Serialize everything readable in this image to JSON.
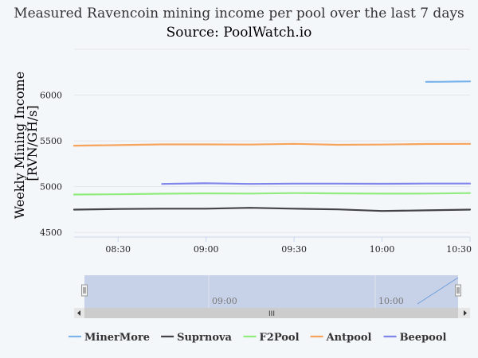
{
  "chart_data": {
    "type": "line",
    "title": "Measured Ravencoin mining income per pool over the last 7 days",
    "subtitle": "Source: PoolWatch.io",
    "ylabel": "Weekly Mining Income [RVN/GH/s]",
    "y_ticks": [
      "4500",
      "5000",
      "5500",
      "6000"
    ],
    "ylim": [
      4450,
      6500
    ],
    "x_ticks": [
      "08:30",
      "09:00",
      "09:30",
      "10:00",
      "10:30"
    ],
    "x_tick_values": [
      "08:30",
      "09:00",
      "09:30",
      "10:00",
      "10:30"
    ],
    "xlim": [
      "08:15",
      "10:30"
    ],
    "navigator_ticks": [
      "09:00",
      "10:00"
    ],
    "legend_position": "bottom",
    "grid": true,
    "series": [
      {
        "name": "MinerMore",
        "color": "#7cb5ec",
        "x": [
          "10:15",
          "10:20",
          "10:25",
          "10:30"
        ],
        "y": [
          6145,
          6146,
          6148,
          6150
        ]
      },
      {
        "name": "Suprnova",
        "color": "#434348",
        "x": [
          "08:15",
          "08:30",
          "08:45",
          "09:00",
          "09:15",
          "09:30",
          "09:45",
          "10:00",
          "10:15",
          "10:30"
        ],
        "y": [
          4750,
          4757,
          4760,
          4760,
          4770,
          4760,
          4752,
          4735,
          4742,
          4750
        ]
      },
      {
        "name": "F2Pool",
        "color": "#90ed7d",
        "x": [
          "08:15",
          "08:30",
          "08:45",
          "09:00",
          "09:15",
          "09:30",
          "09:45",
          "10:00",
          "10:15",
          "10:30"
        ],
        "y": [
          4915,
          4917,
          4923,
          4927,
          4925,
          4930,
          4927,
          4924,
          4925,
          4930
        ]
      },
      {
        "name": "Antpool",
        "color": "#f7a35c",
        "x": [
          "08:15",
          "08:30",
          "08:45",
          "09:00",
          "09:15",
          "09:30",
          "09:45",
          "10:00",
          "10:15",
          "10:30"
        ],
        "y": [
          5448,
          5454,
          5462,
          5462,
          5460,
          5468,
          5458,
          5460,
          5466,
          5468
        ]
      },
      {
        "name": "Beepool",
        "color": "#8085e9",
        "x": [
          "08:45",
          "09:00",
          "09:15",
          "09:30",
          "09:45",
          "10:00",
          "10:15",
          "10:30"
        ],
        "y": [
          5030,
          5038,
          5030,
          5034,
          5034,
          5032,
          5035,
          5035
        ]
      }
    ]
  },
  "navigator": {
    "scrollbar_grip": "III",
    "left_arrow_icon": "arrow-left",
    "right_arrow_icon": "arrow-right",
    "handle_icon": "grip-lines"
  }
}
